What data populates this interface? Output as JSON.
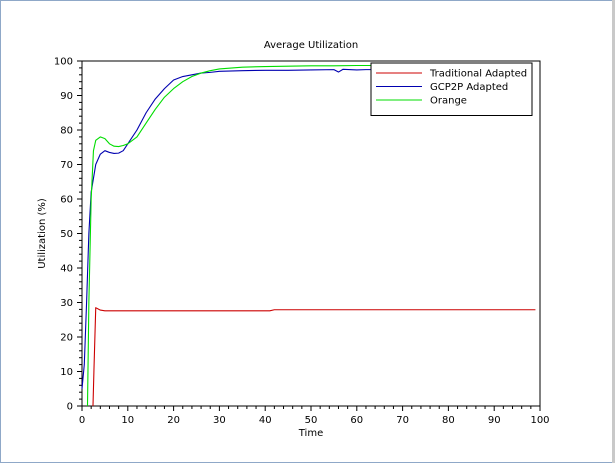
{
  "chart_data": {
    "type": "line",
    "title": "Average Utilization",
    "xlabel": "Time",
    "ylabel": "Utilization (%)",
    "xlim": [
      0,
      100
    ],
    "ylim": [
      0,
      100
    ],
    "xticks": [
      0,
      10,
      20,
      30,
      40,
      50,
      60,
      70,
      80,
      90,
      100
    ],
    "yticks": [
      0,
      10,
      20,
      30,
      40,
      50,
      60,
      70,
      80,
      90,
      100
    ],
    "grid": false,
    "legend_position": "top-right",
    "series": [
      {
        "name": "Traditional Adapted",
        "color": "#cc0000",
        "x": [
          2.4,
          2.6,
          3,
          4,
          5,
          10,
          20,
          30,
          41,
          42,
          60,
          80,
          99
        ],
        "y": [
          0,
          10,
          28.5,
          27.8,
          27.6,
          27.6,
          27.6,
          27.6,
          27.6,
          27.9,
          27.9,
          27.9,
          27.9
        ]
      },
      {
        "name": "GCP2P Adapted",
        "color": "#0000b0",
        "x": [
          0,
          0.5,
          1,
          1.5,
          2,
          3,
          4,
          5,
          6,
          7,
          8,
          9,
          10,
          12,
          14,
          16,
          18,
          20,
          22,
          24,
          26,
          28,
          30,
          35,
          40,
          45,
          50,
          55,
          56,
          57,
          60,
          62,
          63
        ],
        "y": [
          5,
          12,
          30,
          50,
          62,
          70,
          73,
          74,
          73.5,
          73.2,
          73.3,
          74,
          76,
          80,
          85,
          89,
          92,
          94.5,
          95.5,
          96,
          96.5,
          96.7,
          97,
          97.2,
          97.3,
          97.3,
          97.4,
          97.5,
          96.8,
          97.6,
          97.4,
          97.5,
          97.5
        ]
      },
      {
        "name": "Orange",
        "color": "#00dd00",
        "x": [
          1.2,
          1.5,
          2,
          2.5,
          3,
          4,
          5,
          6,
          7,
          8,
          9,
          10,
          12,
          14,
          16,
          18,
          20,
          22,
          24,
          26,
          28,
          30,
          35,
          40,
          45,
          50,
          55,
          60,
          63
        ],
        "y": [
          0,
          30,
          60,
          74,
          77,
          78,
          77.5,
          76,
          75.3,
          75.2,
          75.5,
          76,
          78,
          82,
          86,
          89.5,
          92,
          94,
          95.5,
          96.5,
          97.2,
          97.7,
          98.2,
          98.4,
          98.5,
          98.6,
          98.6,
          98.7,
          98.7
        ]
      }
    ]
  }
}
